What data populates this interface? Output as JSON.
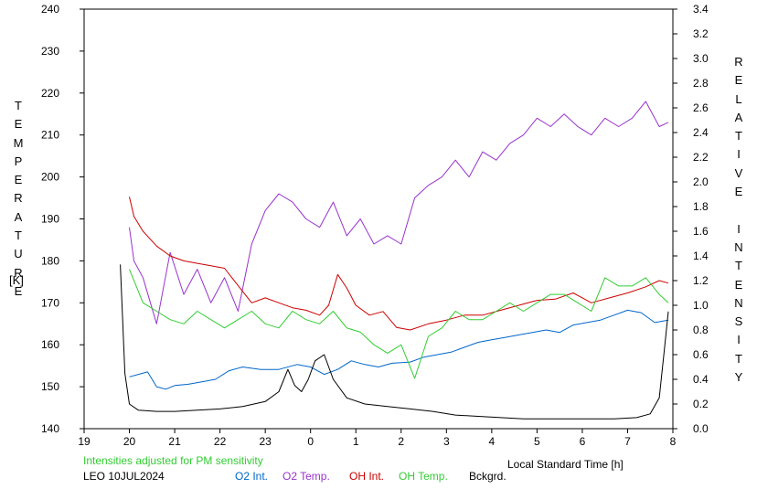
{
  "chart_data": {
    "type": "line",
    "y_left_label": "TEMPERATURE",
    "y_left_unit": "[K]",
    "y_right_label": "RELATIVE INTENSITY",
    "x_label": "Local Standard Time [h]",
    "note": "Intensities adjusted for PM sensitivity",
    "station_date": "LEO 10JUL2024",
    "x_ticks": [
      19,
      20,
      21,
      22,
      23,
      0,
      1,
      2,
      3,
      4,
      5,
      6,
      7,
      8
    ],
    "y_left_ticks": [
      140,
      150,
      160,
      170,
      180,
      190,
      200,
      210,
      220,
      230,
      240
    ],
    "y_right_ticks": [
      "0.0",
      "0.2",
      "0.4",
      "0.6",
      "0.8",
      "1.0",
      "1.2",
      "1.4",
      "1.6",
      "1.8",
      "2.0",
      "2.2",
      "2.4",
      "2.6",
      "2.8",
      "3.0",
      "3.2",
      "3.4"
    ],
    "x_range_hours_since_19": [
      0,
      13
    ],
    "y_left_range": [
      140,
      240
    ],
    "y_right_range": [
      0.0,
      3.4
    ],
    "grid": false,
    "legend_position": "bottom",
    "x_axis_hours_note": "x values below are hours after 19:00 local time",
    "series": [
      {
        "name": "O2 Int.",
        "color": "#0066cc",
        "axis": "right",
        "points": [
          [
            1.0,
            0.42
          ],
          [
            1.2,
            0.44
          ],
          [
            1.4,
            0.46
          ],
          [
            1.6,
            0.34
          ],
          [
            1.8,
            0.32
          ],
          [
            2.0,
            0.35
          ],
          [
            2.3,
            0.36
          ],
          [
            2.6,
            0.38
          ],
          [
            2.9,
            0.4
          ],
          [
            3.2,
            0.47
          ],
          [
            3.5,
            0.5
          ],
          [
            3.9,
            0.48
          ],
          [
            4.3,
            0.48
          ],
          [
            4.7,
            0.52
          ],
          [
            5.0,
            0.5
          ],
          [
            5.3,
            0.44
          ],
          [
            5.6,
            0.48
          ],
          [
            5.9,
            0.55
          ],
          [
            6.2,
            0.52
          ],
          [
            6.5,
            0.5
          ],
          [
            6.8,
            0.53
          ],
          [
            7.2,
            0.54
          ],
          [
            7.5,
            0.58
          ],
          [
            7.8,
            0.6
          ],
          [
            8.1,
            0.62
          ],
          [
            8.4,
            0.66
          ],
          [
            8.7,
            0.7
          ],
          [
            9.0,
            0.72
          ],
          [
            9.3,
            0.74
          ],
          [
            9.6,
            0.76
          ],
          [
            9.9,
            0.78
          ],
          [
            10.2,
            0.8
          ],
          [
            10.5,
            0.78
          ],
          [
            10.8,
            0.84
          ],
          [
            11.1,
            0.86
          ],
          [
            11.4,
            0.88
          ],
          [
            11.7,
            0.92
          ],
          [
            12.0,
            0.96
          ],
          [
            12.3,
            0.94
          ],
          [
            12.6,
            0.86
          ],
          [
            12.9,
            0.88
          ]
        ]
      },
      {
        "name": "O2 Temp.",
        "color": "#9933cc",
        "axis": "left",
        "points": [
          [
            1.0,
            188
          ],
          [
            1.1,
            180
          ],
          [
            1.3,
            176
          ],
          [
            1.6,
            165
          ],
          [
            1.9,
            182
          ],
          [
            2.2,
            172
          ],
          [
            2.5,
            178
          ],
          [
            2.8,
            170
          ],
          [
            3.1,
            176
          ],
          [
            3.4,
            168
          ],
          [
            3.7,
            184
          ],
          [
            4.0,
            192
          ],
          [
            4.3,
            196
          ],
          [
            4.6,
            194
          ],
          [
            4.9,
            190
          ],
          [
            5.2,
            188
          ],
          [
            5.5,
            194
          ],
          [
            5.8,
            186
          ],
          [
            6.1,
            190
          ],
          [
            6.4,
            184
          ],
          [
            6.7,
            186
          ],
          [
            7.0,
            184
          ],
          [
            7.3,
            195
          ],
          [
            7.6,
            198
          ],
          [
            7.9,
            200
          ],
          [
            8.2,
            204
          ],
          [
            8.5,
            200
          ],
          [
            8.8,
            206
          ],
          [
            9.1,
            204
          ],
          [
            9.4,
            208
          ],
          [
            9.7,
            210
          ],
          [
            10.0,
            214
          ],
          [
            10.3,
            212
          ],
          [
            10.6,
            215
          ],
          [
            10.9,
            212
          ],
          [
            11.2,
            210
          ],
          [
            11.5,
            214
          ],
          [
            11.8,
            212
          ],
          [
            12.1,
            214
          ],
          [
            12.4,
            218
          ],
          [
            12.7,
            212
          ],
          [
            12.9,
            213
          ]
        ]
      },
      {
        "name": "OH Int.",
        "color": "#cc0000",
        "axis": "right",
        "points": [
          [
            1.0,
            1.88
          ],
          [
            1.1,
            1.72
          ],
          [
            1.3,
            1.6
          ],
          [
            1.6,
            1.48
          ],
          [
            1.9,
            1.4
          ],
          [
            2.2,
            1.36
          ],
          [
            2.5,
            1.34
          ],
          [
            2.8,
            1.32
          ],
          [
            3.1,
            1.3
          ],
          [
            3.4,
            1.16
          ],
          [
            3.7,
            1.02
          ],
          [
            4.0,
            1.06
          ],
          [
            4.3,
            1.02
          ],
          [
            4.6,
            0.98
          ],
          [
            4.9,
            0.96
          ],
          [
            5.2,
            0.92
          ],
          [
            5.4,
            1.0
          ],
          [
            5.6,
            1.25
          ],
          [
            5.8,
            1.14
          ],
          [
            6.0,
            1.0
          ],
          [
            6.3,
            0.92
          ],
          [
            6.6,
            0.95
          ],
          [
            6.9,
            0.82
          ],
          [
            7.2,
            0.8
          ],
          [
            7.6,
            0.85
          ],
          [
            8.0,
            0.88
          ],
          [
            8.4,
            0.92
          ],
          [
            8.8,
            0.92
          ],
          [
            9.2,
            0.96
          ],
          [
            9.6,
            1.0
          ],
          [
            10.0,
            1.04
          ],
          [
            10.4,
            1.05
          ],
          [
            10.8,
            1.1
          ],
          [
            11.2,
            1.02
          ],
          [
            11.6,
            1.06
          ],
          [
            12.0,
            1.1
          ],
          [
            12.4,
            1.15
          ],
          [
            12.7,
            1.2
          ],
          [
            12.9,
            1.18
          ]
        ]
      },
      {
        "name": "OH Temp.",
        "color": "#33cc33",
        "axis": "left",
        "points": [
          [
            1.0,
            178
          ],
          [
            1.3,
            170
          ],
          [
            1.6,
            168
          ],
          [
            1.9,
            166
          ],
          [
            2.2,
            165
          ],
          [
            2.5,
            168
          ],
          [
            2.8,
            166
          ],
          [
            3.1,
            164
          ],
          [
            3.4,
            166
          ],
          [
            3.7,
            168
          ],
          [
            4.0,
            165
          ],
          [
            4.3,
            164
          ],
          [
            4.6,
            168
          ],
          [
            4.9,
            166
          ],
          [
            5.2,
            165
          ],
          [
            5.5,
            168
          ],
          [
            5.8,
            164
          ],
          [
            6.1,
            163
          ],
          [
            6.4,
            160
          ],
          [
            6.7,
            158
          ],
          [
            7.0,
            160
          ],
          [
            7.3,
            152
          ],
          [
            7.6,
            162
          ],
          [
            7.9,
            164
          ],
          [
            8.2,
            168
          ],
          [
            8.5,
            166
          ],
          [
            8.8,
            166
          ],
          [
            9.1,
            168
          ],
          [
            9.4,
            170
          ],
          [
            9.7,
            168
          ],
          [
            10.0,
            170
          ],
          [
            10.3,
            172
          ],
          [
            10.6,
            172
          ],
          [
            10.9,
            170
          ],
          [
            11.2,
            168
          ],
          [
            11.5,
            176
          ],
          [
            11.8,
            174
          ],
          [
            12.1,
            174
          ],
          [
            12.4,
            176
          ],
          [
            12.7,
            172
          ],
          [
            12.9,
            170
          ]
        ]
      },
      {
        "name": "Bckgrd.",
        "color": "#000000",
        "axis": "right",
        "points": [
          [
            0.8,
            1.33
          ],
          [
            0.9,
            0.45
          ],
          [
            1.0,
            0.2
          ],
          [
            1.2,
            0.15
          ],
          [
            1.6,
            0.14
          ],
          [
            2.0,
            0.14
          ],
          [
            2.5,
            0.15
          ],
          [
            3.0,
            0.16
          ],
          [
            3.5,
            0.18
          ],
          [
            4.0,
            0.22
          ],
          [
            4.3,
            0.3
          ],
          [
            4.5,
            0.48
          ],
          [
            4.65,
            0.35
          ],
          [
            4.8,
            0.3
          ],
          [
            4.95,
            0.4
          ],
          [
            5.1,
            0.55
          ],
          [
            5.3,
            0.6
          ],
          [
            5.5,
            0.4
          ],
          [
            5.8,
            0.25
          ],
          [
            6.2,
            0.2
          ],
          [
            6.7,
            0.18
          ],
          [
            7.2,
            0.16
          ],
          [
            7.7,
            0.14
          ],
          [
            8.2,
            0.11
          ],
          [
            8.7,
            0.1
          ],
          [
            9.2,
            0.09
          ],
          [
            9.7,
            0.08
          ],
          [
            10.2,
            0.08
          ],
          [
            10.7,
            0.08
          ],
          [
            11.2,
            0.08
          ],
          [
            11.7,
            0.08
          ],
          [
            12.2,
            0.09
          ],
          [
            12.5,
            0.12
          ],
          [
            12.7,
            0.25
          ],
          [
            12.8,
            0.6
          ],
          [
            12.9,
            0.95
          ]
        ]
      }
    ]
  }
}
